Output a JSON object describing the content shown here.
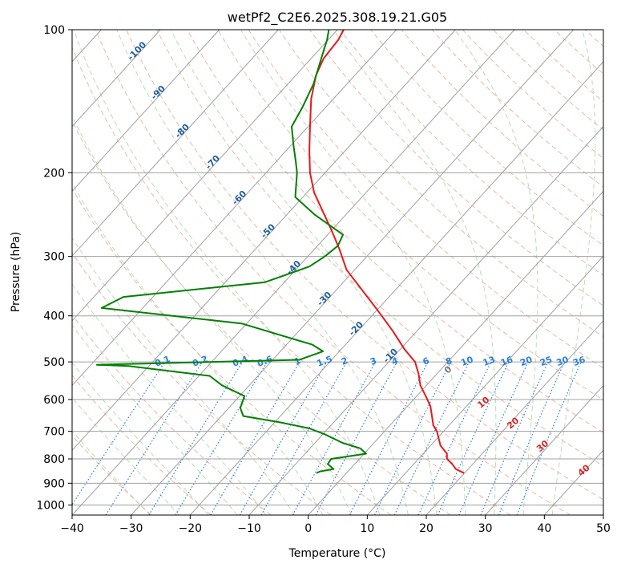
{
  "chart_data": {
    "type": "line",
    "title": "wetPf2_C2E6.2025.308.19.21.G05",
    "xlabel": "Temperature (°C)",
    "ylabel": "Pressure (hPa)",
    "xlim": [
      -40,
      50
    ],
    "ylim": [
      1050,
      100
    ],
    "y_scale": "log",
    "x_ticks": [
      -40,
      -30,
      -20,
      -10,
      0,
      10,
      20,
      30,
      40,
      50
    ],
    "y_ticks": [
      1000,
      900,
      800,
      700,
      600,
      500,
      400,
      300,
      200,
      100
    ],
    "grid": true,
    "diagram": "skew-T log-P",
    "series": [
      {
        "color": "#e41a1c",
        "points": [
          [
            26.4,
            857
          ],
          [
            25.0,
            840
          ],
          [
            24.4,
            820
          ],
          [
            23.5,
            800
          ],
          [
            23.5,
            780
          ],
          [
            22.4,
            750
          ],
          [
            21.8,
            700
          ],
          [
            21.2,
            680
          ],
          [
            20.7,
            620
          ],
          [
            19.9,
            590
          ],
          [
            19.0,
            560
          ],
          [
            18.7,
            530
          ],
          [
            18.1,
            500
          ],
          [
            16.3,
            470
          ],
          [
            14.3,
            430
          ],
          [
            11.8,
            390
          ],
          [
            8.9,
            350
          ],
          [
            6.5,
            320
          ],
          [
            5.3,
            290
          ],
          [
            4.0,
            265
          ],
          [
            2.4,
            240
          ],
          [
            1.0,
            220
          ],
          [
            0.3,
            200
          ],
          [
            0.2,
            180
          ],
          [
            0.3,
            160
          ],
          [
            0.5,
            140
          ],
          [
            1.3,
            125
          ],
          [
            2.6,
            115
          ],
          [
            5.1,
            105
          ],
          [
            6.0,
            100
          ]
        ]
      },
      {
        "color": "#008000",
        "points": [
          [
            1.4,
            857
          ],
          [
            2.0,
            850
          ],
          [
            4.3,
            840
          ],
          [
            3.3,
            820
          ],
          [
            3.9,
            800
          ],
          [
            9.8,
            780
          ],
          [
            8.8,
            760
          ],
          [
            5.8,
            740
          ],
          [
            2.8,
            710
          ],
          [
            0.2,
            690
          ],
          [
            -4.8,
            670
          ],
          [
            -11.0,
            650
          ],
          [
            -11.5,
            625
          ],
          [
            -10.8,
            590
          ],
          [
            -14.6,
            560
          ],
          [
            -16.7,
            535
          ],
          [
            -30.4,
            510
          ],
          [
            -35.8,
            507
          ],
          [
            -1.5,
            495
          ],
          [
            2.5,
            475
          ],
          [
            0.7,
            460
          ],
          [
            -11.3,
            415
          ],
          [
            -35.0,
            385
          ],
          [
            -31.3,
            365
          ],
          [
            -7.4,
            340
          ],
          [
            0.2,
            315
          ],
          [
            2.8,
            300
          ],
          [
            5.0,
            285
          ],
          [
            5.9,
            270
          ],
          [
            1.1,
            245
          ],
          [
            -2.2,
            225
          ],
          [
            -1.9,
            200
          ],
          [
            -2.1,
            190
          ],
          [
            -2.5,
            175
          ],
          [
            -2.8,
            160
          ],
          [
            -0.9,
            145
          ],
          [
            0.9,
            130
          ],
          [
            2.2,
            115
          ],
          [
            3.2,
            105
          ],
          [
            3.5,
            100
          ]
        ]
      }
    ],
    "isotherm_labels": [
      "-100",
      "-90",
      "-80",
      "-70",
      "-60",
      "-50",
      "-40",
      "-30",
      "-20",
      "-10"
    ],
    "mixing_ratio_labels": [
      "0.1",
      "0.2",
      "0.4",
      "0.6",
      "1",
      "1.5",
      "2",
      "3",
      "4",
      "6",
      "8",
      "10",
      "13",
      "16",
      "20",
      "25",
      "30",
      "36"
    ],
    "moist_adiabat_labels": [
      "0",
      "10",
      "20",
      "30",
      "40"
    ],
    "colors": {
      "temperature": "#e41a1c",
      "dewpoint": "#008000",
      "dry_adiabat": "#e3a88a",
      "moist_adiabat": "#a6d5a3",
      "mixing_ratio": "#2e7fd6",
      "isotherm_label": "#1f5f9e",
      "moist_label": "#d62728",
      "grid": "#a0a0a0"
    }
  }
}
